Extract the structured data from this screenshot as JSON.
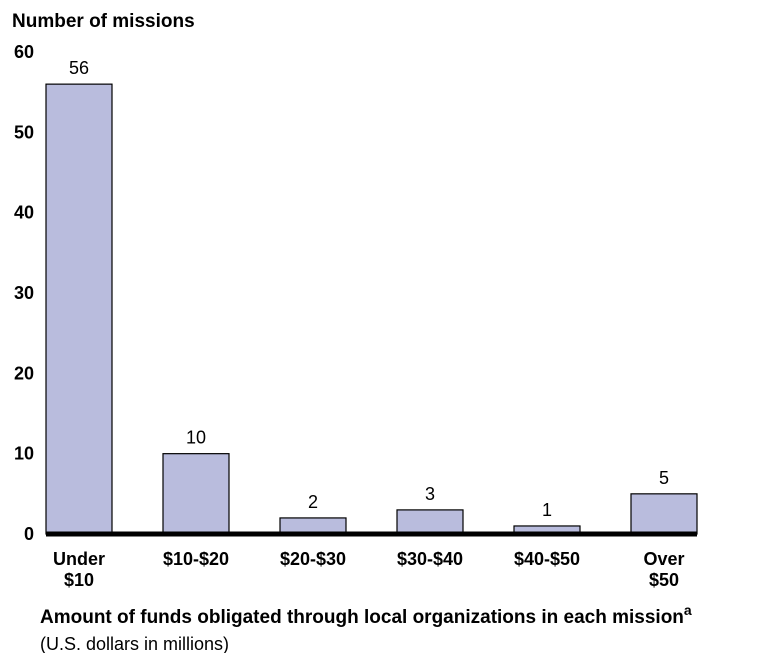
{
  "chart_data": {
    "type": "bar",
    "y_label": "Number of missions",
    "x_label": "Amount of funds obligated through local organizations in each mission",
    "x_label_superscript": "a",
    "subtitle": "(U.S. dollars in millions)",
    "categories": [
      "Under $10",
      "$10-$20",
      "$20-$30",
      "$30-$40",
      "$40-$50",
      "Over $50"
    ],
    "values": [
      56,
      10,
      2,
      3,
      1,
      5
    ],
    "color": "#b9bcdd",
    "ylim": [
      0,
      60
    ],
    "yticks": [
      0,
      10,
      20,
      30,
      40,
      50,
      60
    ],
    "grid": false
  }
}
